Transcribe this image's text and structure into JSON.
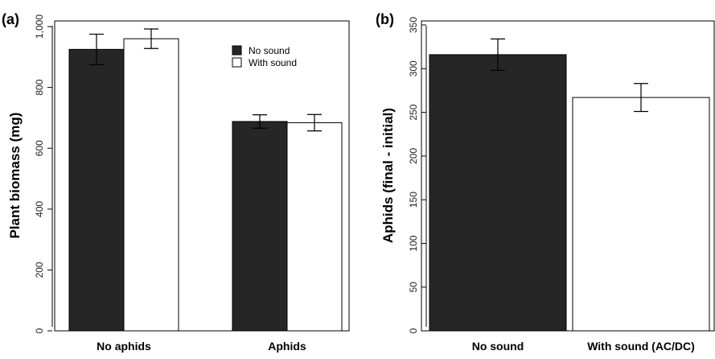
{
  "chart_data": [
    {
      "panel_label": "(a)",
      "type": "bar",
      "ylabel": "Plant biomass (mg)",
      "ylim": [
        0,
        1000
      ],
      "yticks": [
        0,
        200,
        400,
        600,
        800,
        1000
      ],
      "ytick_labels": [
        "0",
        "200",
        "400",
        "600",
        "800",
        "1,000"
      ],
      "categories": [
        "No aphids",
        "Aphids"
      ],
      "series": [
        {
          "name": "No sound",
          "color": "#262626",
          "values": [
            925,
            688
          ],
          "errors": [
            50,
            22
          ]
        },
        {
          "name": "With sound",
          "color": "#ffffff",
          "values": [
            960,
            684
          ],
          "errors": [
            32,
            27
          ]
        }
      ],
      "legend": "top-right",
      "grid": false
    },
    {
      "panel_label": "(b)",
      "type": "bar",
      "ylabel": "Aphids (final - initial)",
      "ylim": [
        0,
        350
      ],
      "yticks": [
        0,
        50,
        100,
        150,
        200,
        250,
        300,
        350
      ],
      "ytick_labels": [
        "0",
        "50",
        "100",
        "150",
        "200",
        "250",
        "300",
        "350"
      ],
      "categories": [
        "No sound",
        "With sound (AC/DC)"
      ],
      "colors": [
        "#262626",
        "#ffffff"
      ],
      "values": [
        316,
        267
      ],
      "errors": [
        18,
        16
      ],
      "grid": false
    }
  ]
}
